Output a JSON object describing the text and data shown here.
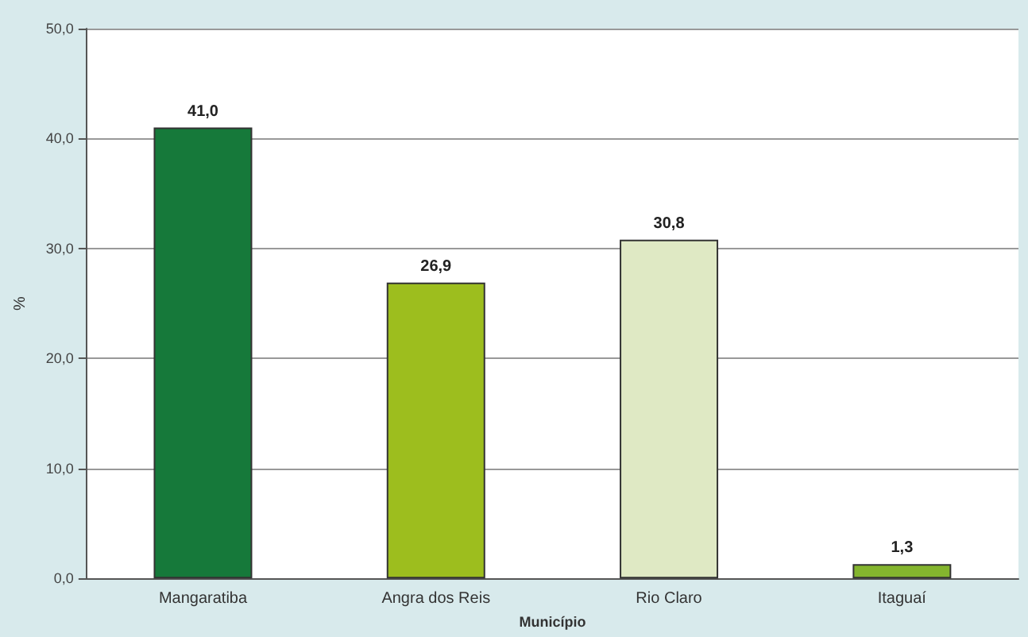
{
  "chart_data": {
    "type": "bar",
    "xlabel": "Município",
    "ylabel": "%",
    "categories": [
      "Mangaratiba",
      "Angra dos Reis",
      "Rio Claro",
      "Itaguaí"
    ],
    "values": [
      41.0,
      26.9,
      30.8,
      1.3
    ],
    "colors": [
      "#16793a",
      "#9dbe1e",
      "#dfe9c4",
      "#84b52e"
    ],
    "value_labels": [
      "41,0",
      "26,9",
      "30,8",
      "1,3"
    ],
    "ylim": [
      0,
      50
    ],
    "yticks": [
      {
        "value": 0,
        "label": "0,0"
      },
      {
        "value": 10,
        "label": "10,0"
      },
      {
        "value": 20,
        "label": "20,0"
      },
      {
        "value": 30,
        "label": "30,0"
      },
      {
        "value": 40,
        "label": "40,0"
      },
      {
        "value": 50,
        "label": "50,0"
      }
    ],
    "grid": "y"
  }
}
